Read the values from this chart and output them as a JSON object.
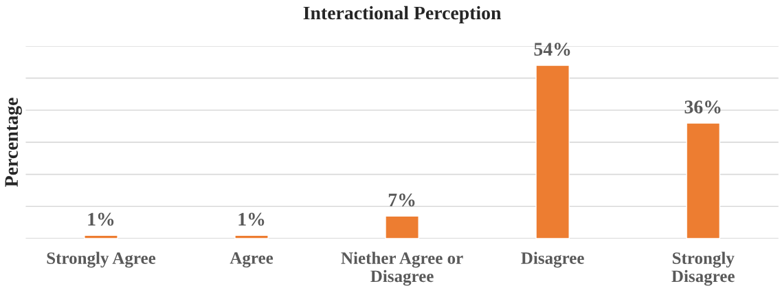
{
  "chart_data": {
    "type": "bar",
    "title": "Interactional Perception",
    "ylabel": "Percentage",
    "categories": [
      "Strongly Agree",
      "Agree",
      "Niether Agree or\nDisagree",
      "Disagree",
      "Strongly\nDisagree"
    ],
    "values": [
      1,
      1,
      7,
      54,
      36
    ],
    "color": "#ed7d31",
    "value_labels": [
      "1%",
      "1%",
      "7%",
      "54%",
      "36%"
    ],
    "ylim": [
      0,
      60
    ],
    "yticks": [
      {
        "value": 0,
        "label": null
      },
      {
        "value": 10,
        "label": null
      },
      {
        "value": 20,
        "label": null
      },
      {
        "value": 30,
        "label": null
      },
      {
        "value": 40,
        "label": null
      },
      {
        "value": 50,
        "label": null
      },
      {
        "value": 60,
        "label": null
      }
    ],
    "grid": "y",
    "tick_labels": "x"
  }
}
